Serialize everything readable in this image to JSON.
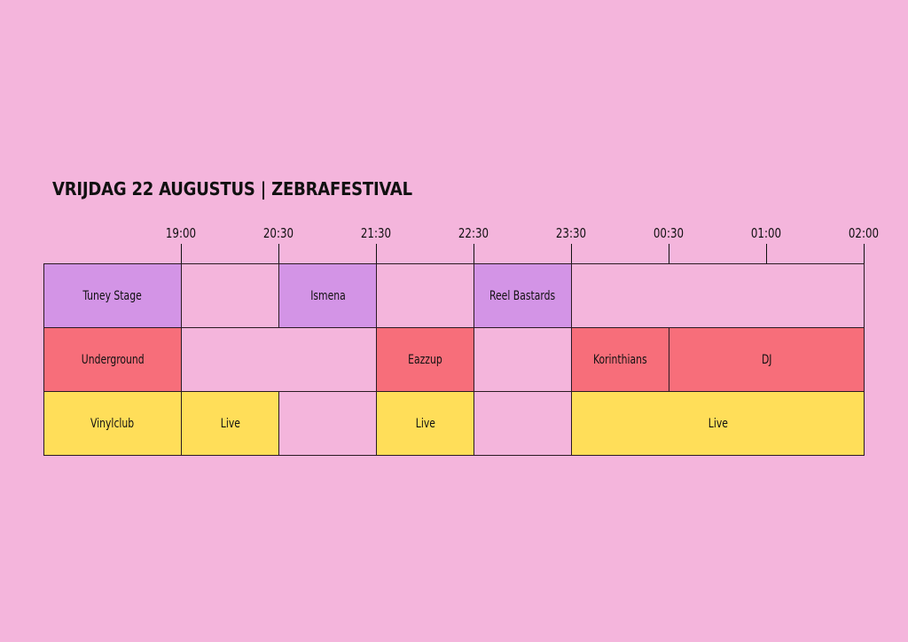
{
  "title": "VRIJDAG 22 AUGUSTUS | ZEBRAFESTIVAL",
  "colors": {
    "background": "#f4b5dc",
    "empty": "#f4b5dc",
    "tuney": "#d394e6",
    "underground": "#f76e7a",
    "vinyl": "#ffde59"
  },
  "times": [
    "19:00",
    "20:30",
    "21:30",
    "22:30",
    "23:30",
    "00:30",
    "01:00",
    "02:00"
  ],
  "rows": [
    {
      "stage": "Tuney Stage",
      "color": "tuney",
      "cells": [
        {
          "from": 0,
          "to": 1,
          "label": ""
        },
        {
          "from": 1,
          "to": 2,
          "label": "Ismena"
        },
        {
          "from": 2,
          "to": 3,
          "label": ""
        },
        {
          "from": 3,
          "to": 4,
          "label": "Reel Bastards"
        },
        {
          "from": 4,
          "to": 7,
          "label": ""
        }
      ]
    },
    {
      "stage": "Underground",
      "color": "underground",
      "cells": [
        {
          "from": 0,
          "to": 2,
          "label": ""
        },
        {
          "from": 2,
          "to": 3,
          "label": "Eazzup"
        },
        {
          "from": 3,
          "to": 4,
          "label": ""
        },
        {
          "from": 4,
          "to": 5,
          "label": "Korinthians"
        },
        {
          "from": 5,
          "to": 7,
          "label": "DJ"
        }
      ]
    },
    {
      "stage": "Vinylclub",
      "color": "vinyl",
      "cells": [
        {
          "from": 0,
          "to": 1,
          "label": "Live"
        },
        {
          "from": 1,
          "to": 2,
          "label": ""
        },
        {
          "from": 2,
          "to": 3,
          "label": "Live"
        },
        {
          "from": 3,
          "to": 4,
          "label": ""
        },
        {
          "from": 4,
          "to": 7,
          "label": "Live"
        }
      ]
    }
  ]
}
